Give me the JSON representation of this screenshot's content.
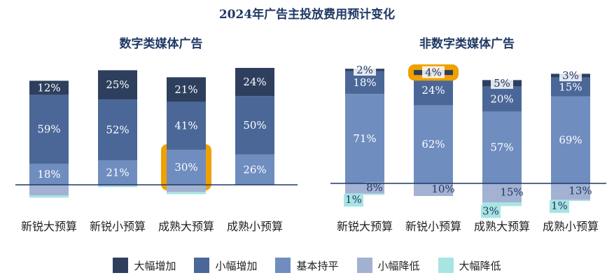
{
  "title": "2024年广告主投放费用预计变化",
  "legend": [
    {
      "label": "大幅增加",
      "color": "#2e3f5e"
    },
    {
      "label": "小幅增加",
      "color": "#4a6798"
    },
    {
      "label": "基本持平",
      "color": "#6f8dbf"
    },
    {
      "label": "小幅降低",
      "color": "#a3b1d2"
    },
    {
      "label": "大幅降低",
      "color": "#a8e4e2"
    }
  ],
  "highlight_color": "#f0a000",
  "chart_data": [
    {
      "type": "bar",
      "stacked": true,
      "title": "数字类媒体广告",
      "categories": [
        "新锐大预算",
        "新锐小预算",
        "成熟大预算",
        "成熟小预算"
      ],
      "series": [
        {
          "name": "大幅增加",
          "values": [
            12,
            25,
            21,
            24
          ],
          "labels": [
            "12%",
            "25%",
            "21%",
            "24%"
          ]
        },
        {
          "name": "小幅增加",
          "values": [
            59,
            52,
            41,
            50
          ],
          "labels": [
            "59%",
            "52%",
            "41%",
            "50%"
          ]
        },
        {
          "name": "基本持平",
          "values": [
            18,
            21,
            30,
            26
          ],
          "labels": [
            "18%",
            "21%",
            "30%",
            "26%"
          ]
        },
        {
          "name": "小幅降低",
          "values": [
            -9,
            -1,
            -6,
            0
          ],
          "labels": [
            "",
            "",
            "",
            ""
          ]
        },
        {
          "name": "大幅降低",
          "values": [
            -2,
            -1,
            -2,
            0
          ],
          "labels": [
            "",
            "",
            "",
            ""
          ]
        }
      ],
      "highlight": {
        "category": "成熟大预算",
        "series": "基本持平"
      }
    },
    {
      "type": "bar",
      "stacked": true,
      "title": "非数字类媒体广告",
      "categories": [
        "新锐大预算",
        "新锐小预算",
        "成熟大预算",
        "成熟小预算"
      ],
      "series": [
        {
          "name": "大幅增加",
          "values": [
            2,
            4,
            5,
            3
          ],
          "labels": [
            "2%",
            "4%",
            "5%",
            "3%"
          ]
        },
        {
          "name": "小幅增加",
          "values": [
            18,
            24,
            20,
            15
          ],
          "labels": [
            "18%",
            "24%",
            "20%",
            "15%"
          ]
        },
        {
          "name": "基本持平",
          "values": [
            71,
            62,
            57,
            69
          ],
          "labels": [
            "71%",
            "62%",
            "57%",
            "69%"
          ]
        },
        {
          "name": "小幅降低",
          "values": [
            -8,
            -10,
            -15,
            -13
          ],
          "labels": [
            "8%",
            "10%",
            "15%",
            "13%"
          ]
        },
        {
          "name": "大幅降低",
          "values": [
            -1,
            0,
            -3,
            -1
          ],
          "labels": [
            "1%",
            "",
            "3%",
            "1%"
          ]
        }
      ],
      "highlight": {
        "category": "新锐小预算",
        "series": "大幅增加"
      }
    }
  ]
}
